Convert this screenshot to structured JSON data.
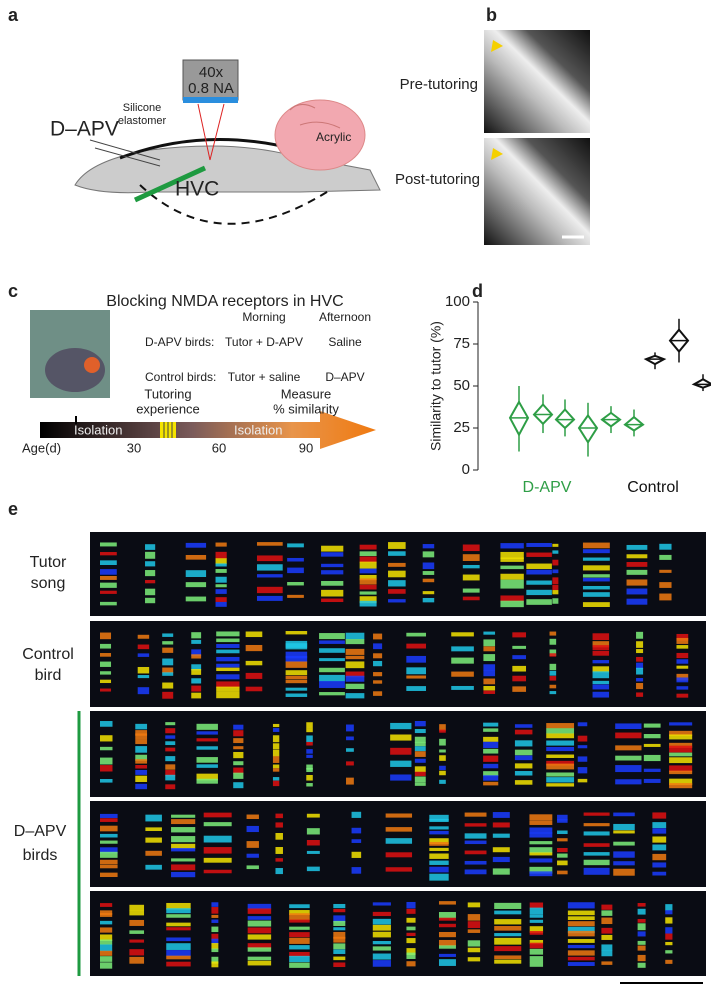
{
  "panel_letters": [
    "a",
    "b",
    "c",
    "d",
    "e"
  ],
  "panel_a": {
    "objective": [
      "40x",
      "0.8 NA"
    ],
    "elastomer": [
      "Silicone",
      "elastomer"
    ],
    "drug": "D–APV",
    "region": "HVC",
    "acrylic": "Acrylic"
  },
  "panel_b": {
    "labels": [
      "Pre-tutoring",
      "Post-tutoring"
    ]
  },
  "panel_c": {
    "title": "Blocking NMDA receptors in HVC",
    "columns": [
      "Morning",
      "Afternoon"
    ],
    "rows": [
      [
        "D-APV birds:",
        "Tutor + D-APV",
        "Saline"
      ],
      [
        "Control birds:",
        "Tutor + saline",
        "D–APV"
      ]
    ],
    "timeline": {
      "tutoring": [
        "Tutoring",
        "experience"
      ],
      "measure": [
        "Measure",
        "% similarity"
      ],
      "isolation": [
        "Isolation",
        "Isolation"
      ],
      "age_label": "Age(d)",
      "ages": [
        30,
        60,
        90
      ]
    }
  },
  "chart_data": {
    "type": "range-diamond",
    "y_label": "Similarity to tutor (%)",
    "ylim": [
      0,
      100
    ],
    "yticks": [
      0,
      25,
      50,
      75,
      100
    ],
    "series": [
      {
        "name": "D-APV",
        "color": "#2e9e46",
        "median": [
          31,
          33,
          30,
          25,
          30,
          27
        ],
        "low": [
          11,
          22,
          20,
          8,
          22,
          20
        ],
        "high": [
          50,
          45,
          42,
          40,
          38,
          36
        ]
      },
      {
        "name": "Control",
        "color": "#111111",
        "median": [
          66,
          77,
          51
        ],
        "low": [
          60,
          64,
          47
        ],
        "high": [
          70,
          90,
          57
        ]
      }
    ]
  },
  "panel_e": {
    "labels": [
      [
        "Tutor",
        "song"
      ],
      [
        "Control",
        "bird"
      ],
      [
        "D–APV",
        "birds"
      ]
    ]
  }
}
